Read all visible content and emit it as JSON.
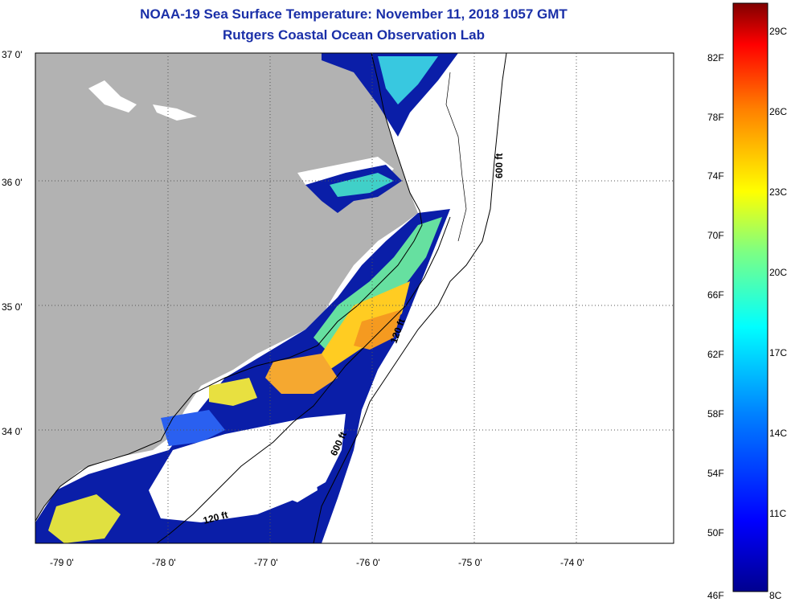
{
  "header": {
    "title": "NOAA-19 Sea Surface Temperature:  November 11, 2018 1057 GMT",
    "subtitle": "Rutgers Coastal Ocean Observation Lab"
  },
  "axes": {
    "lat_labels": [
      "37 0'",
      "36 0'",
      "35 0'",
      "34 0'"
    ],
    "lon_labels": [
      "-79 0'",
      "-78 0'",
      "-77 0'",
      "-76 0'",
      "-75 0'",
      "-74 0'"
    ]
  },
  "contours": {
    "c600_top": "600 ft",
    "c120_mid": "120 ft",
    "c600_bottom": "600 ft",
    "c120_bottom": "120 ft"
  },
  "colorbar": {
    "f_labels": [
      "82F",
      "78F",
      "74F",
      "70F",
      "66F",
      "62F",
      "58F",
      "54F",
      "50F",
      "46F"
    ],
    "c_labels": [
      "29C",
      "26C",
      "23C",
      "20C",
      "17C",
      "14C",
      "11C",
      "8C"
    ]
  },
  "colors": {
    "land": "#b2b2b2",
    "title": "#1a2fa8"
  }
}
